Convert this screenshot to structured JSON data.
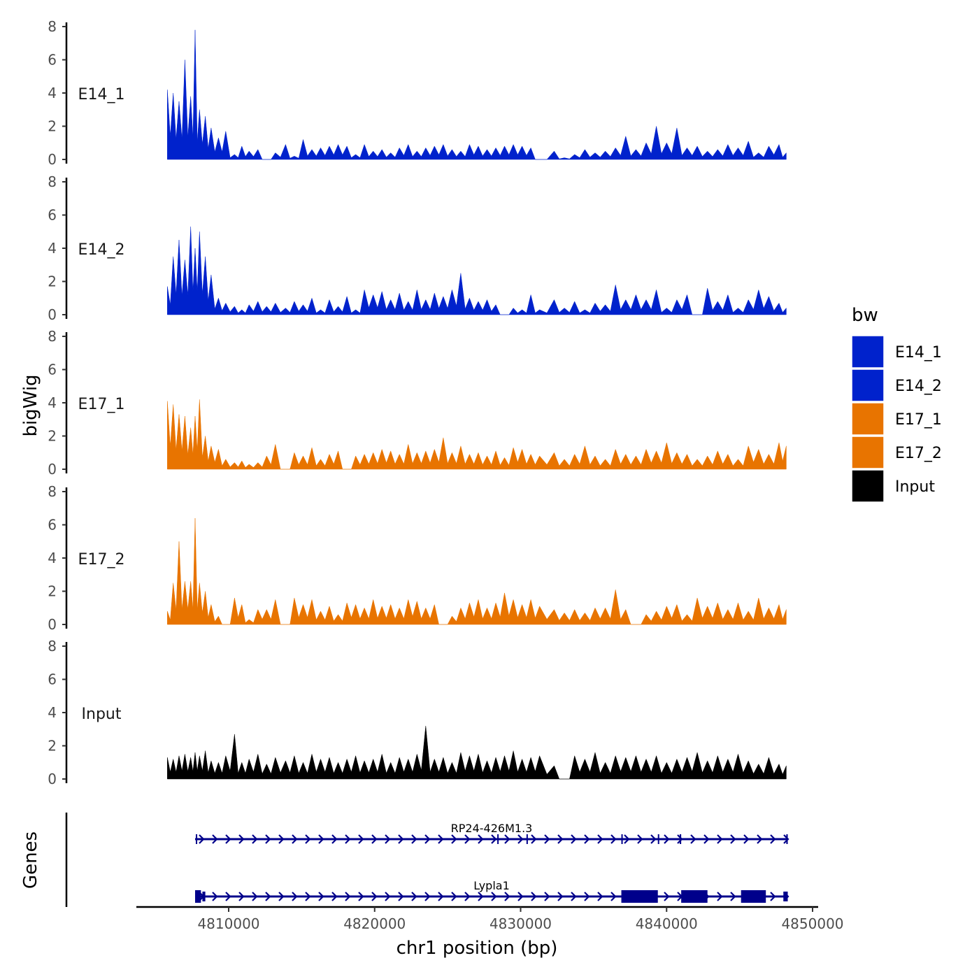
{
  "chart_data": {
    "type": "area",
    "xlabel": "chr1 position (bp)",
    "ylabel": "bigWig",
    "genes_label": "Genes",
    "xlim": [
      4804000,
      4850500
    ],
    "x_ticks": [
      4810000,
      4820000,
      4830000,
      4840000,
      4850000
    ],
    "x_tick_labels": [
      "4810000",
      "4820000",
      "4830000",
      "4840000",
      "4850000"
    ],
    "ylim": [
      0,
      8
    ],
    "y_ticks": [
      0,
      2,
      4,
      6,
      8
    ],
    "y_tick_labels": [
      "0",
      "2",
      "4",
      "6",
      "8"
    ],
    "legend_title": "bw",
    "series": [
      {
        "name": "E14_1",
        "color": "#0022CC",
        "x": [
          4805800,
          4806200,
          4806600,
          4807000,
          4807400,
          4807700,
          4808000,
          4808400,
          4808800,
          4809300,
          4809800,
          4810400,
          4810900,
          4811400,
          4812000,
          4812600,
          4813200,
          4813900,
          4814500,
          4815100,
          4815700,
          4816300,
          4816900,
          4817500,
          4818100,
          4818700,
          4819300,
          4819900,
          4820500,
          4821100,
          4821700,
          4822300,
          4822900,
          4823500,
          4824100,
          4824700,
          4825300,
          4825900,
          4826500,
          4827100,
          4827700,
          4828300,
          4828900,
          4829500,
          4830100,
          4830700,
          4831300,
          4832300,
          4833000,
          4833700,
          4834400,
          4835100,
          4835800,
          4836500,
          4837200,
          4837900,
          4838600,
          4839300,
          4840000,
          4840700,
          4841400,
          4842100,
          4842800,
          4843500,
          4844200,
          4844900,
          4845600,
          4846300,
          4847000,
          4847700,
          4848200
        ],
        "y": [
          4.2,
          4.0,
          3.5,
          6.0,
          3.8,
          7.8,
          3.0,
          2.6,
          1.9,
          1.3,
          1.7,
          0.3,
          0.8,
          0.5,
          0.6,
          0.0,
          0.4,
          0.9,
          0.2,
          1.2,
          0.6,
          0.7,
          0.8,
          0.9,
          0.8,
          0.3,
          0.9,
          0.5,
          0.6,
          0.4,
          0.7,
          0.9,
          0.5,
          0.7,
          0.8,
          0.9,
          0.6,
          0.5,
          0.9,
          0.8,
          0.6,
          0.7,
          0.8,
          0.9,
          0.8,
          0.7,
          0.0,
          0.5,
          0.1,
          0.3,
          0.6,
          0.4,
          0.5,
          0.7,
          1.4,
          0.6,
          1.0,
          2.0,
          1.0,
          1.9,
          0.7,
          0.8,
          0.5,
          0.6,
          0.9,
          0.7,
          1.1,
          0.4,
          0.8,
          0.9,
          0.4
        ]
      },
      {
        "name": "E14_2",
        "color": "#0022CC",
        "x": [
          4805800,
          4806200,
          4806600,
          4807000,
          4807400,
          4807700,
          4808000,
          4808400,
          4808800,
          4809300,
          4809800,
          4810400,
          4810900,
          4811400,
          4812000,
          4812600,
          4813200,
          4813900,
          4814500,
          4815100,
          4815700,
          4816300,
          4816900,
          4817500,
          4818100,
          4818700,
          4819300,
          4819900,
          4820500,
          4821100,
          4821700,
          4822300,
          4822900,
          4823500,
          4824100,
          4824700,
          4825300,
          4825900,
          4826500,
          4827100,
          4827700,
          4828300,
          4828900,
          4829500,
          4830100,
          4830700,
          4831300,
          4832300,
          4833000,
          4833700,
          4834400,
          4835100,
          4835800,
          4836500,
          4837200,
          4837900,
          4838600,
          4839300,
          4840000,
          4840700,
          4841400,
          4842100,
          4842800,
          4843500,
          4844200,
          4844900,
          4845600,
          4846300,
          4847000,
          4847700,
          4848200
        ],
        "y": [
          1.7,
          3.5,
          4.5,
          3.3,
          5.3,
          4.0,
          5.0,
          3.5,
          2.4,
          1.0,
          0.7,
          0.5,
          0.3,
          0.6,
          0.8,
          0.5,
          0.7,
          0.4,
          0.8,
          0.6,
          1.0,
          0.3,
          0.9,
          0.5,
          1.1,
          0.3,
          1.5,
          1.2,
          1.4,
          0.9,
          1.3,
          0.8,
          1.5,
          0.9,
          1.3,
          1.1,
          1.5,
          2.5,
          1.0,
          0.8,
          0.9,
          0.6,
          0.0,
          0.4,
          0.3,
          1.2,
          0.3,
          0.9,
          0.4,
          0.8,
          0.3,
          0.7,
          0.6,
          1.8,
          0.9,
          1.2,
          0.9,
          1.5,
          0.4,
          0.9,
          1.2,
          0.0,
          1.6,
          0.8,
          1.2,
          0.4,
          0.9,
          1.5,
          1.1,
          0.7,
          0.4
        ]
      },
      {
        "name": "E17_1",
        "color": "#E87400",
        "x": [
          4805800,
          4806200,
          4806600,
          4807000,
          4807400,
          4807700,
          4808000,
          4808400,
          4808800,
          4809300,
          4809800,
          4810400,
          4810900,
          4811400,
          4812000,
          4812600,
          4813200,
          4813900,
          4814500,
          4815100,
          4815700,
          4816300,
          4816900,
          4817500,
          4818100,
          4818700,
          4819300,
          4819900,
          4820500,
          4821100,
          4821700,
          4822300,
          4822900,
          4823500,
          4824100,
          4824700,
          4825300,
          4825900,
          4826500,
          4827100,
          4827700,
          4828300,
          4828900,
          4829500,
          4830100,
          4830700,
          4831300,
          4832300,
          4833000,
          4833700,
          4834400,
          4835100,
          4835800,
          4836500,
          4837200,
          4837900,
          4838600,
          4839300,
          4840000,
          4840700,
          4841400,
          4842100,
          4842800,
          4843500,
          4844200,
          4844900,
          4845600,
          4846300,
          4847000,
          4847700,
          4848200
        ],
        "y": [
          4.1,
          3.9,
          3.3,
          3.2,
          2.5,
          3.2,
          4.2,
          2.0,
          1.4,
          1.2,
          0.6,
          0.4,
          0.5,
          0.3,
          0.4,
          0.8,
          1.5,
          0.0,
          1.0,
          0.8,
          1.3,
          0.6,
          0.9,
          1.1,
          0.0,
          0.8,
          0.9,
          1.0,
          1.2,
          1.1,
          0.9,
          1.5,
          1.0,
          1.1,
          1.2,
          1.9,
          1.0,
          1.4,
          0.9,
          1.0,
          0.8,
          1.1,
          0.7,
          1.3,
          1.2,
          0.9,
          0.8,
          1.0,
          0.6,
          0.9,
          1.4,
          0.8,
          0.6,
          1.2,
          0.9,
          0.8,
          1.2,
          1.1,
          1.6,
          1.0,
          0.9,
          0.6,
          0.8,
          1.1,
          0.9,
          0.6,
          1.4,
          1.2,
          0.9,
          1.6,
          1.4
        ]
      },
      {
        "name": "E17_2",
        "color": "#E87400",
        "x": [
          4805800,
          4806200,
          4806600,
          4807000,
          4807400,
          4807700,
          4808000,
          4808400,
          4808800,
          4809300,
          4809800,
          4810400,
          4810900,
          4811400,
          4812000,
          4812600,
          4813200,
          4813900,
          4814500,
          4815100,
          4815700,
          4816300,
          4816900,
          4817500,
          4818100,
          4818700,
          4819300,
          4819900,
          4820500,
          4821100,
          4821700,
          4822300,
          4822900,
          4823500,
          4824100,
          4824700,
          4825300,
          4825900,
          4826500,
          4827100,
          4827700,
          4828300,
          4828900,
          4829500,
          4830100,
          4830700,
          4831300,
          4832300,
          4833000,
          4833700,
          4834400,
          4835100,
          4835800,
          4836500,
          4837200,
          4837900,
          4838600,
          4839300,
          4840000,
          4840700,
          4841400,
          4842100,
          4842800,
          4843500,
          4844200,
          4844900,
          4845600,
          4846300,
          4847000,
          4847700,
          4848200
        ],
        "y": [
          0.8,
          2.5,
          5.0,
          2.6,
          2.6,
          6.4,
          2.5,
          2.0,
          1.2,
          0.5,
          0.0,
          1.6,
          1.2,
          0.3,
          0.9,
          0.9,
          1.5,
          0.0,
          1.6,
          1.2,
          1.5,
          0.8,
          1.1,
          0.6,
          1.3,
          1.2,
          1.0,
          1.5,
          1.1,
          1.2,
          1.0,
          1.5,
          1.4,
          1.0,
          1.2,
          0.0,
          0.5,
          1.0,
          1.3,
          1.5,
          1.0,
          1.3,
          1.9,
          1.5,
          1.2,
          1.5,
          1.1,
          0.9,
          0.7,
          0.9,
          0.7,
          1.0,
          1.0,
          2.1,
          0.9,
          0.0,
          0.6,
          0.8,
          1.1,
          1.2,
          0.6,
          1.6,
          1.1,
          1.3,
          0.9,
          1.3,
          0.8,
          1.6,
          1.0,
          1.2,
          0.9
        ]
      },
      {
        "name": "Input",
        "color": "#000000",
        "x": [
          4805800,
          4806200,
          4806600,
          4807000,
          4807400,
          4807700,
          4808000,
          4808400,
          4808800,
          4809300,
          4809800,
          4810400,
          4810900,
          4811400,
          4812000,
          4812600,
          4813200,
          4813900,
          4814500,
          4815100,
          4815700,
          4816300,
          4816900,
          4817500,
          4818100,
          4818700,
          4819300,
          4819900,
          4820500,
          4821100,
          4821700,
          4822300,
          4822900,
          4823500,
          4824100,
          4824700,
          4825300,
          4825900,
          4826500,
          4827100,
          4827700,
          4828300,
          4828900,
          4829500,
          4830100,
          4830700,
          4831300,
          4832300,
          4833000,
          4833700,
          4834400,
          4835100,
          4835800,
          4836500,
          4837200,
          4837900,
          4838600,
          4839300,
          4840000,
          4840700,
          4841400,
          4842100,
          4842800,
          4843500,
          4844200,
          4844900,
          4845600,
          4846300,
          4847000,
          4847700,
          4848200
        ],
        "y": [
          1.3,
          1.2,
          1.4,
          1.5,
          1.3,
          1.6,
          1.4,
          1.7,
          1.1,
          1.0,
          1.4,
          2.7,
          1.0,
          1.2,
          1.5,
          0.9,
          1.3,
          1.1,
          1.4,
          1.0,
          1.5,
          1.2,
          1.3,
          1.0,
          1.2,
          1.4,
          1.1,
          1.2,
          1.5,
          1.0,
          1.3,
          1.2,
          1.5,
          3.2,
          1.2,
          1.3,
          1.0,
          1.6,
          1.4,
          1.5,
          1.1,
          1.3,
          1.4,
          1.7,
          1.2,
          1.3,
          1.4,
          0.8,
          0.0,
          1.4,
          1.2,
          1.6,
          1.0,
          1.4,
          1.3,
          1.4,
          1.2,
          1.4,
          1.0,
          1.2,
          1.3,
          1.6,
          1.1,
          1.4,
          1.2,
          1.5,
          1.1,
          0.9,
          1.3,
          0.9,
          0.8
        ]
      }
    ],
    "genes": [
      {
        "name": "RP24-426M1.3",
        "start": 4807700,
        "end": 4848300,
        "strand": "+",
        "exons": [
          [
            4807750,
            4807800
          ],
          [
            4828400,
            4828450
          ],
          [
            4830400,
            4830450
          ],
          [
            4836900,
            4836950
          ],
          [
            4839400,
            4839450
          ],
          [
            4840900,
            4841000
          ],
          [
            4848200,
            4848300
          ]
        ]
      },
      {
        "name": "Lypla1",
        "start": 4807700,
        "end": 4848300,
        "strand": "+",
        "exons": [
          [
            4807700,
            4808100
          ],
          [
            4808200,
            4808400
          ],
          [
            4836900,
            4839400
          ],
          [
            4841000,
            4842800
          ],
          [
            4845100,
            4846800
          ],
          [
            4848000,
            4848300
          ]
        ]
      }
    ]
  }
}
